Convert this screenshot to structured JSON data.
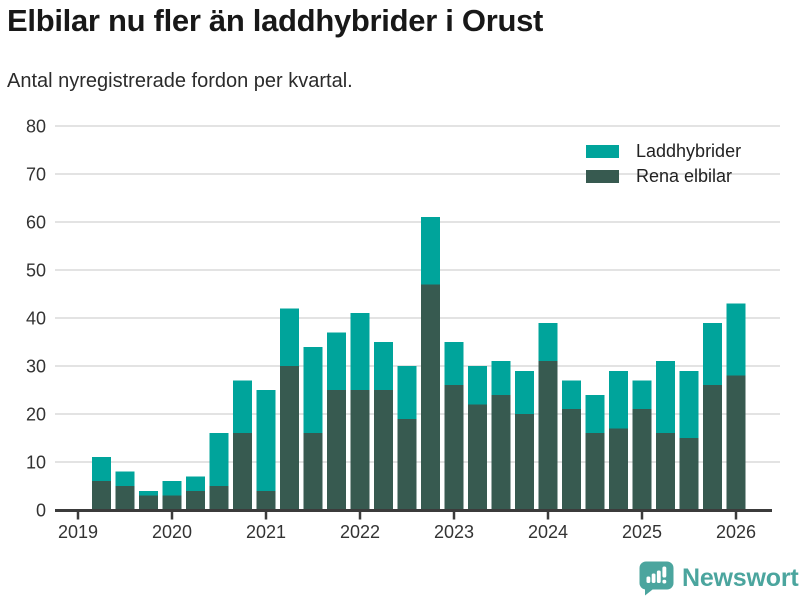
{
  "footer": {
    "brand": "Newsworthy"
  },
  "chart_data": {
    "type": "bar",
    "stacked": true,
    "title": "Elbilar nu fler än laddhybrider i Orust",
    "subtitle": "Antal nyregistrerade fordon per kvartal.",
    "xlabel": "",
    "ylabel": "",
    "ylim": [
      0,
      80
    ],
    "yticks": [
      0,
      10,
      20,
      30,
      40,
      50,
      60,
      70,
      80
    ],
    "grid": true,
    "legend_position": "top-right",
    "x_tick_labels": [
      "2019",
      "2020",
      "2021",
      "2022",
      "2023",
      "2024",
      "2025",
      "2026"
    ],
    "quarters": [
      "2019 Q2",
      "2019 Q3",
      "2019 Q4",
      "2020 Q1",
      "2020 Q2",
      "2020 Q3",
      "2020 Q4",
      "2021 Q1",
      "2021 Q2",
      "2021 Q3",
      "2021 Q4",
      "2022 Q1",
      "2022 Q2",
      "2022 Q3",
      "2022 Q4",
      "2023 Q1",
      "2023 Q2",
      "2023 Q3",
      "2023 Q4",
      "2024 Q1",
      "2024 Q2",
      "2024 Q3",
      "2024 Q4",
      "2025 Q1",
      "2025 Q2",
      "2025 Q3",
      "2025 Q4",
      "2026 Q1"
    ],
    "series": [
      {
        "name": "Laddhybrider",
        "color": "#00A49B",
        "stack_position": "top",
        "values": [
          5,
          3,
          1,
          3,
          3,
          11,
          11,
          21,
          12,
          18,
          12,
          16,
          10,
          11,
          14,
          9,
          8,
          7,
          9,
          8,
          6,
          8,
          12,
          6,
          15,
          14,
          13,
          15
        ]
      },
      {
        "name": "Rena elbilar",
        "color": "#375A50",
        "stack_position": "bottom",
        "values": [
          6,
          5,
          3,
          3,
          4,
          5,
          16,
          4,
          30,
          16,
          25,
          25,
          25,
          19,
          47,
          26,
          22,
          24,
          20,
          31,
          21,
          16,
          17,
          21,
          16,
          15,
          26,
          28
        ]
      }
    ],
    "stacked_totals": [
      11,
      8,
      4,
      6,
      7,
      16,
      27,
      25,
      42,
      34,
      37,
      41,
      35,
      30,
      61,
      35,
      30,
      31,
      29,
      39,
      27,
      24,
      29,
      27,
      31,
      29,
      39,
      43
    ],
    "grid_color": "#E3E3E3",
    "axis_color": "#3B3B3B",
    "axis_text_color": "#333333",
    "brand_color": "#4BA59E"
  }
}
